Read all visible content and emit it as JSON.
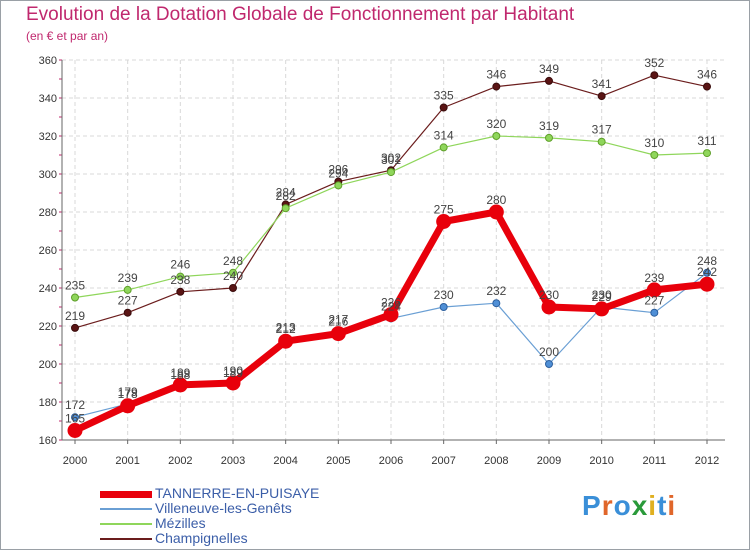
{
  "header": {
    "title": "Evolution de la Dotation Globale de Fonctionnement par Habitant",
    "subtitle": "(en € et par an)"
  },
  "logo": {
    "text": "Proxiti"
  },
  "chart_data": {
    "type": "line",
    "title": "Evolution de la Dotation Globale de Fonctionnement par Habitant",
    "subtitle": "(en € et par an)",
    "xlabel": "",
    "ylabel": "",
    "ylim": [
      160,
      360
    ],
    "yticks": [
      160,
      180,
      200,
      220,
      240,
      260,
      280,
      300,
      320,
      340,
      360
    ],
    "grid": true,
    "categories": [
      "2000",
      "2001",
      "2002",
      "2003",
      "2004",
      "2005",
      "2006",
      "2007",
      "2008",
      "2009",
      "2010",
      "2011",
      "2012"
    ],
    "series": [
      {
        "name": "TANNERRE-EN-PUISAYE",
        "color": "#e8000b",
        "values": [
          165,
          178,
          189,
          190,
          212,
          216,
          226,
          275,
          280,
          230,
          229,
          239,
          242
        ]
      },
      {
        "name": "Villeneuve-les-Genêts",
        "color": "#6a9fd4",
        "values": [
          172,
          179,
          188,
          189,
          213,
          217,
          224,
          230,
          232,
          200,
          230,
          227,
          248
        ]
      },
      {
        "name": "Mézilles",
        "color": "#8fd65b",
        "values": [
          235,
          239,
          246,
          248,
          282,
          294,
          301,
          314,
          320,
          319,
          317,
          310,
          311
        ]
      },
      {
        "name": "Champignelles",
        "color": "#6b1d1d",
        "values": [
          219,
          227,
          238,
          240,
          284,
          296,
          302,
          335,
          346,
          349,
          341,
          352,
          346
        ]
      }
    ]
  }
}
